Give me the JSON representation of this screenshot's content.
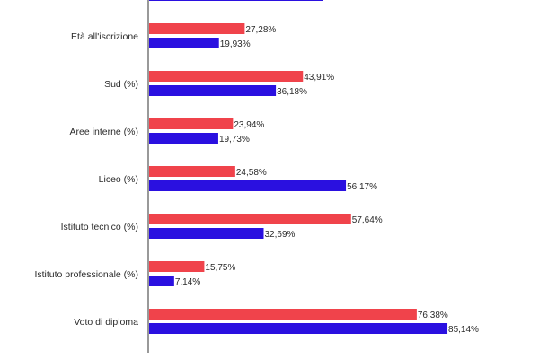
{
  "chart_data": {
    "type": "bar",
    "orientation": "horizontal",
    "categories": [
      "",
      "Età all'iscrizione",
      "Sud (%)",
      "Aree interne (%)",
      "Liceo (%)",
      "Istituto tecnico (%)",
      "Istituto professionale (%)",
      "Voto di diploma"
    ],
    "series": [
      {
        "color": "#f0434b",
        "values": [
          null,
          27.28,
          43.91,
          23.94,
          24.58,
          57.64,
          15.75,
          76.38
        ],
        "labels": [
          "",
          "27,28%",
          "43,91%",
          "23,94%",
          "24,58%",
          "57,64%",
          "15,75%",
          "76,38%"
        ]
      },
      {
        "color": "#2a10e0",
        "values": [
          49.5,
          19.93,
          36.18,
          19.73,
          56.17,
          32.69,
          7.14,
          85.14
        ],
        "labels": [
          "",
          "19,93%",
          "36,18%",
          "19,73%",
          "56,17%",
          "32,69%",
          "7,14%",
          "85,14%"
        ]
      }
    ],
    "xlim": [
      0,
      100
    ],
    "grid": false,
    "legend": "none",
    "axis_color": "#333333"
  }
}
